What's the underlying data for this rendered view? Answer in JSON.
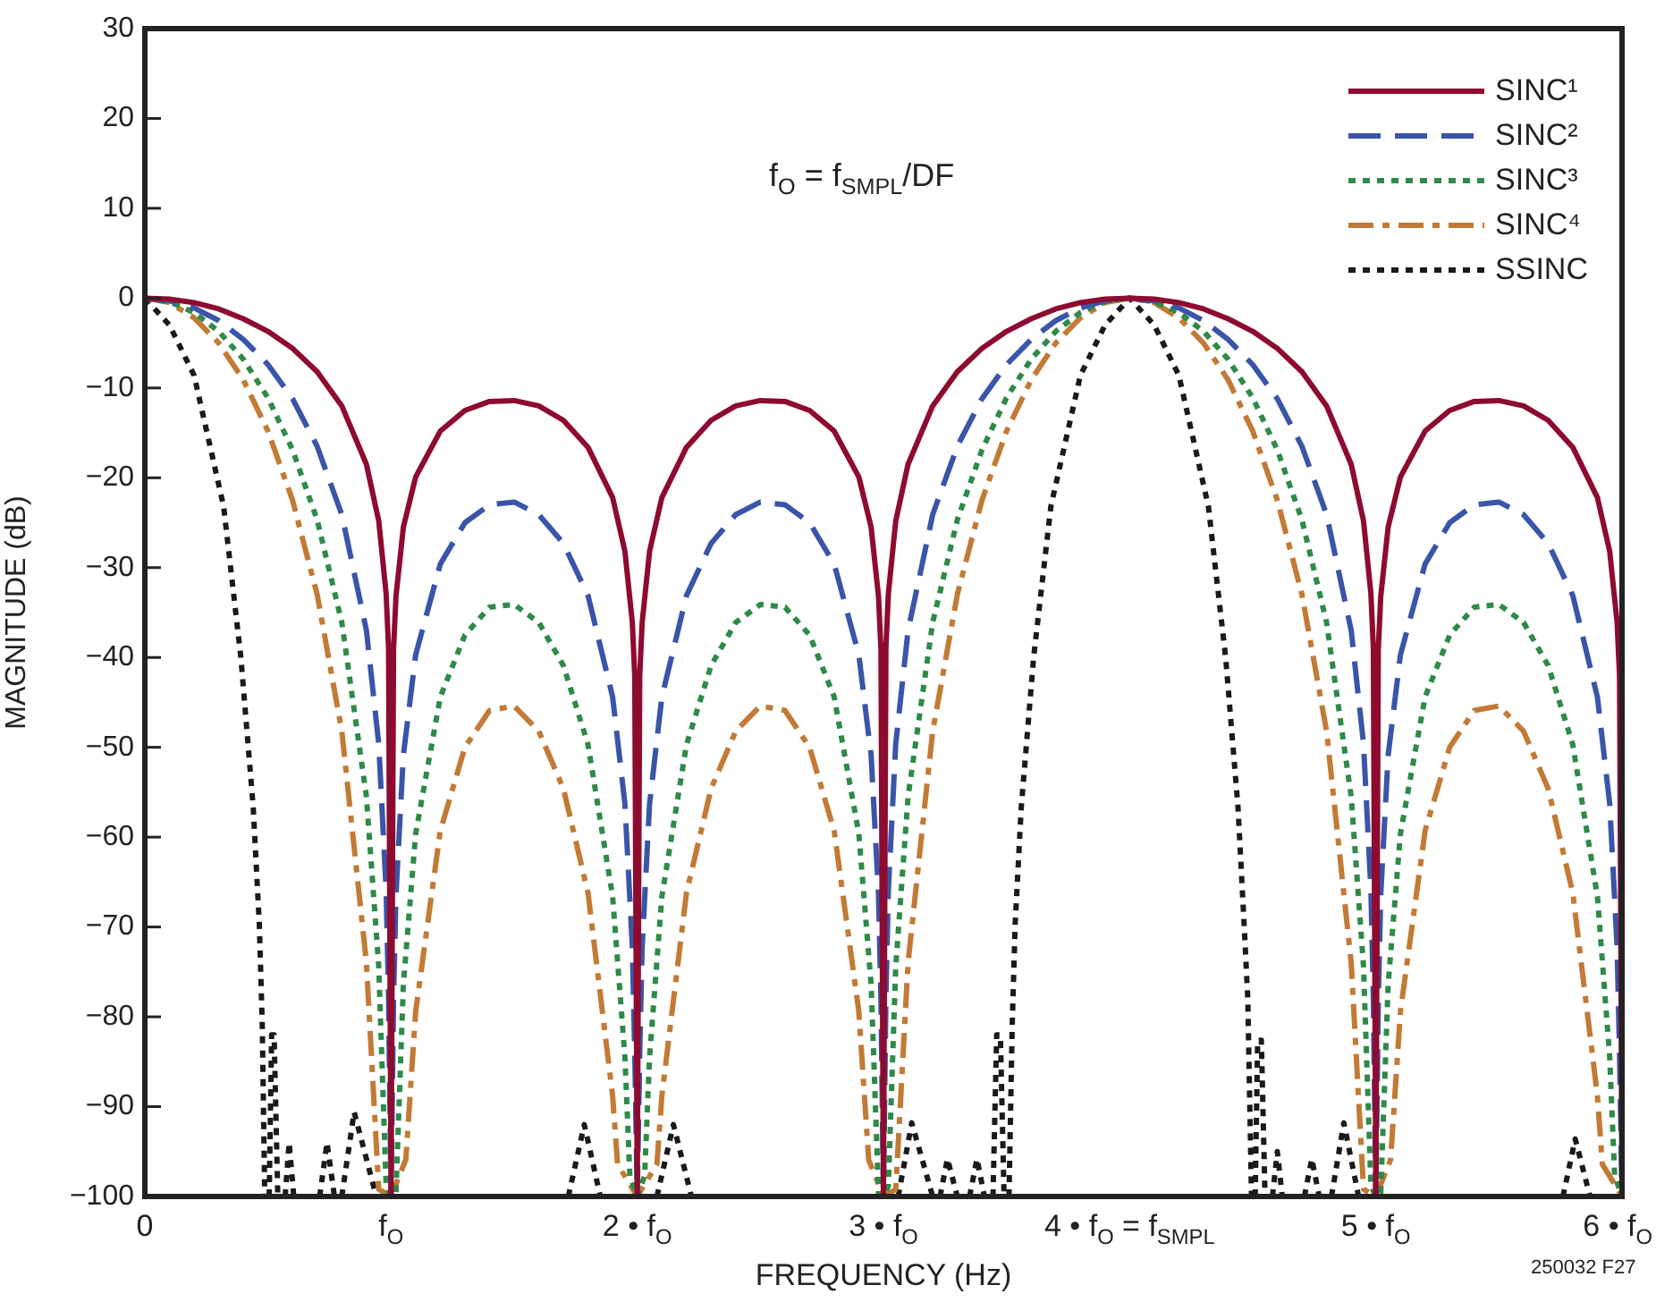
{
  "chart_data": {
    "type": "line",
    "xlabel": "FREQUENCY (Hz)",
    "ylabel": "MAGNITUDE (dB)",
    "xlim": [
      0,
      6
    ],
    "ylim": [
      -100,
      30
    ],
    "xticks": [
      0,
      {
        "value": 1,
        "label": "f$_{O}$"
      },
      {
        "value": 2,
        "label": "2 • f$_{O}$"
      },
      {
        "value": 3,
        "label": "3 • f$_{O}$"
      },
      {
        "value": 4,
        "label": "4 • f$_{O}$ = f$_{SMPL}$"
      },
      {
        "value": 5,
        "label": "5 • f$_{O}$"
      },
      {
        "value": 6,
        "label": "6 • f$_{O}$"
      }
    ],
    "yticks": [
      -100,
      -90,
      -80,
      -70,
      -60,
      -50,
      -40,
      -30,
      -20,
      -10,
      0,
      10,
      20,
      30
    ],
    "grid": false,
    "legend": "top right",
    "marker": "none",
    "annotations": [
      "f$_{O}$ = f$_{SMPL}$/DF",
      "250032 F27"
    ],
    "series": [
      {
        "name": "SINC¹",
        "color": "#8e0b30",
        "line_style": "solid",
        "x": [
          0,
          0.1,
          0.2,
          0.3,
          0.4,
          0.5,
          0.6,
          0.7,
          0.8,
          0.9,
          0.95,
          0.98,
          0.99,
          1,
          1.01,
          1.02,
          1.05,
          1.1,
          1.2,
          1.3,
          1.4,
          1.5,
          1.6,
          1.7,
          1.8,
          1.9,
          1.95,
          1.98,
          1.99,
          2,
          2.01,
          2.02,
          2.05,
          2.1,
          2.2,
          2.3,
          2.4,
          2.5,
          2.6,
          2.7,
          2.8,
          2.9,
          2.95,
          2.98,
          2.99,
          3,
          3.01,
          3.02,
          3.05,
          3.1,
          3.2,
          3.3,
          3.4,
          3.5,
          3.6,
          3.7,
          3.8,
          3.9,
          4,
          4.1,
          4.2,
          4.3,
          4.4,
          4.5,
          4.6,
          4.7,
          4.8,
          4.9,
          4.95,
          4.98,
          4.99,
          5,
          5.01,
          5.02,
          5.05,
          5.1,
          5.2,
          5.3,
          5.4,
          5.5,
          5.6,
          5.7,
          5.8,
          5.9,
          5.95,
          5.98,
          5.99,
          6
        ],
        "values": [
          0,
          -0.1,
          -0.5,
          -1.2,
          -2.3,
          -3.7,
          -5.6,
          -8.2,
          -12.0,
          -18.5,
          -24.8,
          -32.9,
          -39.0,
          -100,
          -39.2,
          -33.2,
          -25.5,
          -19.9,
          -14.8,
          -12.5,
          -11.5,
          -11.4,
          -12.0,
          -13.6,
          -16.6,
          -22.2,
          -28.2,
          -36.1,
          -42.1,
          -100,
          -42.1,
          -36.1,
          -28.2,
          -22.2,
          -16.6,
          -13.6,
          -12.0,
          -11.4,
          -11.5,
          -12.5,
          -14.8,
          -19.9,
          -25.5,
          -33.2,
          -39.2,
          -100,
          -39.0,
          -32.9,
          -24.8,
          -18.5,
          -12.0,
          -8.2,
          -5.6,
          -3.7,
          -2.3,
          -1.2,
          -0.5,
          -0.1,
          0,
          -0.1,
          -0.5,
          -1.2,
          -2.3,
          -3.7,
          -5.6,
          -8.2,
          -12.0,
          -18.5,
          -24.8,
          -32.9,
          -39.0,
          -100,
          -39.2,
          -33.2,
          -25.5,
          -19.9,
          -14.8,
          -12.5,
          -11.5,
          -11.4,
          -12.0,
          -13.6,
          -16.6,
          -22.2,
          -28.2,
          -36.1,
          -42.1,
          -100
        ]
      },
      {
        "name": "SINC²",
        "color": "#3a55a8",
        "line_style": "dashed",
        "x": [
          0,
          0.1,
          0.2,
          0.3,
          0.4,
          0.5,
          0.6,
          0.7,
          0.8,
          0.9,
          0.95,
          0.98,
          0.99,
          1,
          1.01,
          1.02,
          1.05,
          1.1,
          1.2,
          1.3,
          1.4,
          1.5,
          1.6,
          1.7,
          1.8,
          1.9,
          1.95,
          1.98,
          1.99,
          2,
          2.01,
          2.02,
          2.05,
          2.1,
          2.2,
          2.3,
          2.4,
          2.5,
          2.6,
          2.7,
          2.8,
          2.9,
          2.95,
          2.98,
          2.99,
          3,
          3.01,
          3.02,
          3.05,
          3.1,
          3.2,
          3.3,
          3.4,
          3.5,
          3.6,
          3.7,
          3.8,
          3.9,
          4,
          4.1,
          4.2,
          4.3,
          4.4,
          4.5,
          4.6,
          4.7,
          4.8,
          4.9,
          4.95,
          4.98,
          4.99,
          5,
          5.01,
          5.02,
          5.05,
          5.1,
          5.2,
          5.3,
          5.4,
          5.5,
          5.6,
          5.7,
          5.8,
          5.9,
          5.95,
          5.98,
          5.99,
          6
        ],
        "values": [
          0,
          -0.3,
          -1.1,
          -2.5,
          -4.6,
          -7.4,
          -11.2,
          -16.5,
          -24.1,
          -37.0,
          -49.6,
          -65.9,
          -78.0,
          -100,
          -78.3,
          -66.4,
          -50.9,
          -39.7,
          -29.6,
          -25.0,
          -23.0,
          -22.7,
          -24.1,
          -27.3,
          -33.1,
          -44.4,
          -56.3,
          -72.2,
          -84.2,
          -100,
          -84.2,
          -72.2,
          -56.3,
          -44.4,
          -33.1,
          -27.3,
          -24.1,
          -22.7,
          -23.0,
          -25.0,
          -29.6,
          -39.7,
          -50.9,
          -66.4,
          -78.3,
          -100,
          -78.0,
          -65.9,
          -49.6,
          -37.0,
          -24.1,
          -16.5,
          -11.2,
          -7.4,
          -4.6,
          -2.5,
          -1.1,
          -0.3,
          0,
          -0.3,
          -1.1,
          -2.5,
          -4.6,
          -7.4,
          -11.2,
          -16.5,
          -24.1,
          -37.0,
          -49.6,
          -65.9,
          -78.0,
          -100,
          -78.3,
          -66.4,
          -50.9,
          -39.7,
          -29.6,
          -25.0,
          -23.0,
          -22.7,
          -24.1,
          -27.3,
          -33.1,
          -44.4,
          -56.3,
          -72.2,
          -84.2,
          -100
        ]
      },
      {
        "name": "SINC³",
        "color": "#2e8a48",
        "line_style": "dotted",
        "x": [
          0,
          0.1,
          0.2,
          0.3,
          0.4,
          0.5,
          0.6,
          0.7,
          0.8,
          0.9,
          0.95,
          0.98,
          1,
          1.02,
          1.05,
          1.1,
          1.2,
          1.3,
          1.4,
          1.5,
          1.6,
          1.7,
          1.8,
          1.9,
          1.95,
          1.97,
          2,
          2.03,
          2.05,
          2.1,
          2.2,
          2.3,
          2.4,
          2.5,
          2.6,
          2.7,
          2.8,
          2.9,
          2.95,
          2.98,
          3,
          3.02,
          3.05,
          3.1,
          3.2,
          3.3,
          3.4,
          3.5,
          3.6,
          3.7,
          3.8,
          3.9,
          4,
          4.1,
          4.2,
          4.3,
          4.4,
          4.5,
          4.6,
          4.7,
          4.8,
          4.9,
          4.95,
          4.98,
          5,
          5.02,
          5.05,
          5.1,
          5.2,
          5.3,
          5.4,
          5.5,
          5.6,
          5.7,
          5.8,
          5.9,
          5.95,
          5.97,
          6
        ],
        "values": [
          0,
          -0.4,
          -1.6,
          -3.7,
          -6.8,
          -11.1,
          -16.9,
          -24.7,
          -36.1,
          -55.5,
          -74.4,
          -98.8,
          -100,
          -99.6,
          -76.4,
          -59.6,
          -44.4,
          -37.5,
          -34.4,
          -34.1,
          -36.1,
          -40.9,
          -49.7,
          -66.6,
          -84.5,
          -97.7,
          -100,
          -97.7,
          -84.5,
          -66.6,
          -49.7,
          -40.9,
          -36.1,
          -34.1,
          -34.4,
          -37.5,
          -44.4,
          -59.6,
          -76.4,
          -99.6,
          -100,
          -98.8,
          -74.4,
          -55.5,
          -36.1,
          -24.7,
          -16.9,
          -11.1,
          -6.8,
          -3.7,
          -1.6,
          -0.4,
          0,
          -0.4,
          -1.6,
          -3.7,
          -6.8,
          -11.1,
          -16.9,
          -24.7,
          -36.1,
          -55.5,
          -74.4,
          -98.8,
          -100,
          -99.6,
          -76.4,
          -59.6,
          -44.4,
          -37.5,
          -34.4,
          -34.1,
          -36.1,
          -40.9,
          -49.7,
          -66.6,
          -84.5,
          -97.7,
          -100
        ]
      },
      {
        "name": "SINC⁴",
        "color": "#c27a36",
        "line_style": "dashdot",
        "x": [
          0,
          0.1,
          0.2,
          0.3,
          0.4,
          0.5,
          0.6,
          0.7,
          0.8,
          0.9,
          0.95,
          1,
          1.06,
          1.1,
          1.2,
          1.3,
          1.4,
          1.5,
          1.6,
          1.7,
          1.8,
          1.9,
          1.92,
          2,
          2.08,
          2.1,
          2.2,
          2.3,
          2.4,
          2.5,
          2.6,
          2.7,
          2.8,
          2.9,
          2.94,
          3,
          3.05,
          3.1,
          3.2,
          3.3,
          3.4,
          3.5,
          3.6,
          3.7,
          3.8,
          3.9,
          4,
          4.1,
          4.2,
          4.3,
          4.4,
          4.5,
          4.6,
          4.7,
          4.8,
          4.9,
          4.95,
          5,
          5.06,
          5.1,
          5.2,
          5.3,
          5.4,
          5.5,
          5.6,
          5.7,
          5.8,
          5.9,
          5.92,
          6
        ],
        "values": [
          0,
          -0.5,
          -2.2,
          -5.0,
          -9.1,
          -14.8,
          -22.5,
          -33.0,
          -48.2,
          -74.0,
          -99.2,
          -100,
          -95.9,
          -79.4,
          -59.3,
          -50.0,
          -45.9,
          -45.4,
          -48.2,
          -54.6,
          -66.2,
          -88.8,
          -96.4,
          -100,
          -96.4,
          -88.8,
          -66.2,
          -54.6,
          -48.2,
          -45.4,
          -45.9,
          -50.0,
          -59.3,
          -79.4,
          -95.9,
          -100,
          -99.2,
          -74.0,
          -48.2,
          -33.0,
          -22.5,
          -14.8,
          -9.1,
          -5.0,
          -2.2,
          -0.5,
          0,
          -0.5,
          -2.2,
          -5.0,
          -9.1,
          -14.8,
          -22.5,
          -33.0,
          -48.2,
          -74.0,
          -99.2,
          -100,
          -95.9,
          -79.4,
          -59.3,
          -50.0,
          -45.9,
          -45.4,
          -48.2,
          -54.6,
          -66.2,
          -88.8,
          -96.4,
          -100
        ]
      },
      {
        "name": "SSINC",
        "color": "#1a1a1a",
        "line_style": "dotted",
        "x": [
          0,
          0.1,
          0.2,
          0.32,
          0.39,
          0.44,
          0.465,
          0.477,
          0.487,
          0.496,
          0.505,
          0.515,
          0.525,
          0.54,
          0.555,
          0.57,
          0.586,
          0.605,
          0.66,
          0.71,
          0.74,
          0.77,
          0.785,
          0.8,
          0.85,
          0.94,
          1.3,
          1.72,
          1.785,
          1.85,
          1.97,
          2.08,
          2.147,
          2.22,
          2.6,
          3.06,
          3.115,
          3.2,
          3.215,
          3.23,
          3.26,
          3.3,
          3.325,
          3.35,
          3.38,
          3.41,
          3.43,
          3.445,
          3.46,
          3.475,
          3.49,
          3.5,
          3.51,
          3.523,
          3.535,
          3.56,
          3.61,
          3.68,
          3.8,
          3.9,
          4,
          4.1,
          4.2,
          4.32,
          4.39,
          4.44,
          4.465,
          4.48,
          4.495,
          4.503,
          4.51,
          4.52,
          4.535,
          4.55,
          4.565,
          4.58,
          4.6,
          4.62,
          4.66,
          4.71,
          4.74,
          4.77,
          4.795,
          4.82,
          4.87,
          4.93,
          5.3,
          5.76,
          5.81,
          5.87
        ],
        "values": [
          0,
          -3,
          -8.6,
          -23.2,
          -40,
          -56.6,
          -69.7,
          -81,
          -100,
          null,
          -100,
          -82,
          -82,
          -100,
          null,
          -100,
          -94,
          -100,
          null,
          -100,
          -94,
          -100,
          null,
          -100,
          -90.6,
          -100,
          null,
          -100,
          -92,
          -100,
          null,
          -100,
          -92,
          -100,
          null,
          -100,
          -91.8,
          -100,
          null,
          -100,
          -95.8,
          -100,
          null,
          -100,
          -95.8,
          -100,
          null,
          -100,
          -82,
          -82,
          -100,
          null,
          -100,
          -81,
          -69.7,
          -56.6,
          -40,
          -23.2,
          -8.6,
          -3,
          0,
          -3,
          -8.6,
          -23.2,
          -40,
          -56.6,
          -69.7,
          -78,
          -100,
          null,
          -100,
          -82.6,
          -82.6,
          -100,
          null,
          -100,
          -95,
          -100,
          null,
          -100,
          -95.8,
          -100,
          null,
          -100,
          -91.8,
          -100,
          null,
          -100,
          -93.6,
          -100
        ]
      }
    ]
  }
}
